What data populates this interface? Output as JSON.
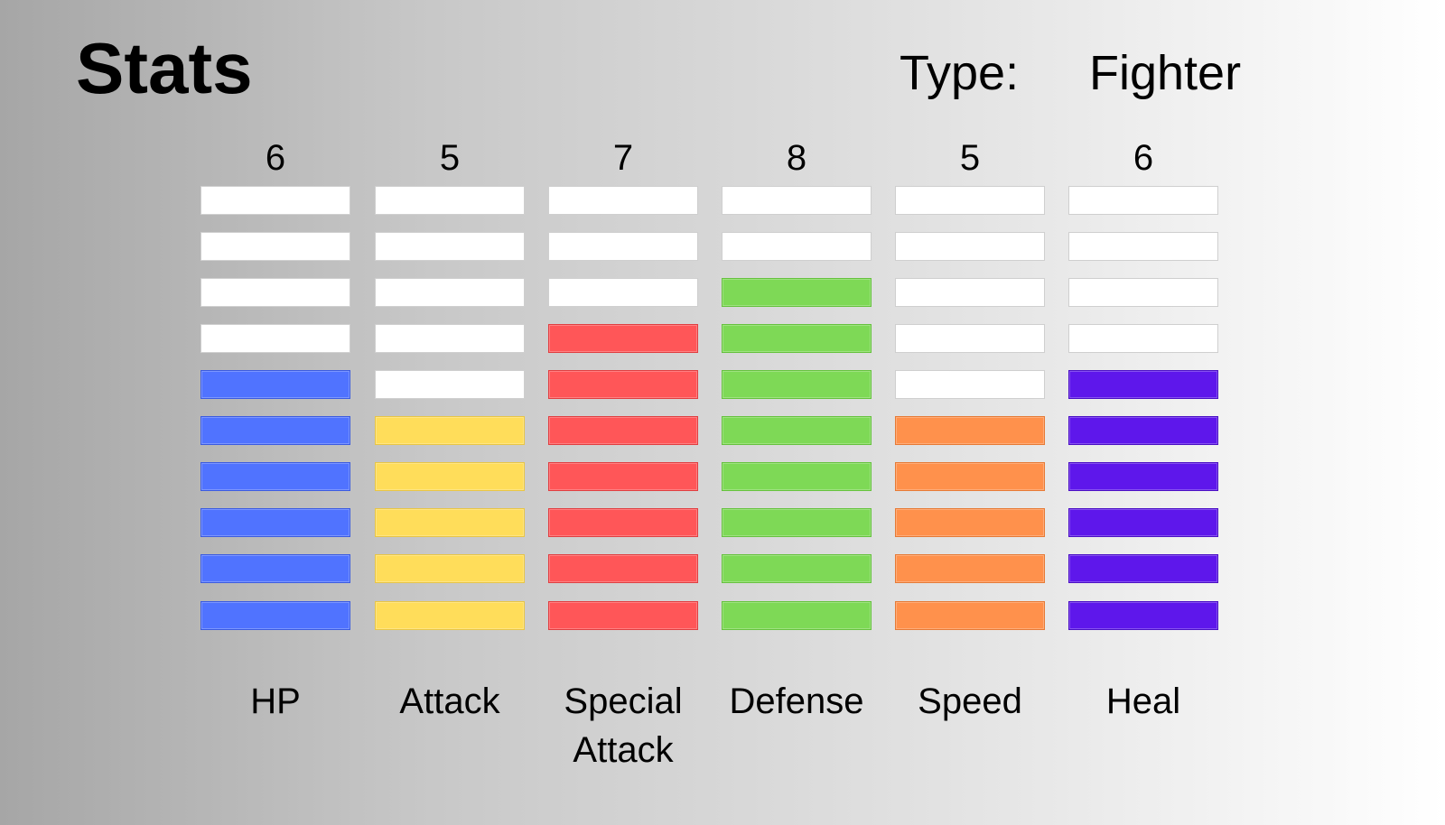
{
  "header": {
    "title": "Stats",
    "type_label": "Type:",
    "type_value": "Fighter"
  },
  "max_level": 10,
  "stats": [
    {
      "name": "HP",
      "value": "6",
      "level": 6,
      "color": "#5073ff",
      "border": "#3b5be0"
    },
    {
      "name": "Attack",
      "value": "5",
      "level": 5,
      "color": "#ffdd5a",
      "border": "#e8c545"
    },
    {
      "name": "Special Attack",
      "value": "7",
      "level": 7,
      "color": "#ff5658",
      "border": "#e03e40"
    },
    {
      "name": "Defense",
      "value": "8",
      "level": 8,
      "color": "#7ed956",
      "border": "#66c23e"
    },
    {
      "name": "Speed",
      "value": "5",
      "level": 5,
      "color": "#ff914c",
      "border": "#e67a35"
    },
    {
      "name": "Heal",
      "value": "6",
      "level": 6,
      "color": "#5e17eb",
      "border": "#4a0fc4"
    }
  ]
}
